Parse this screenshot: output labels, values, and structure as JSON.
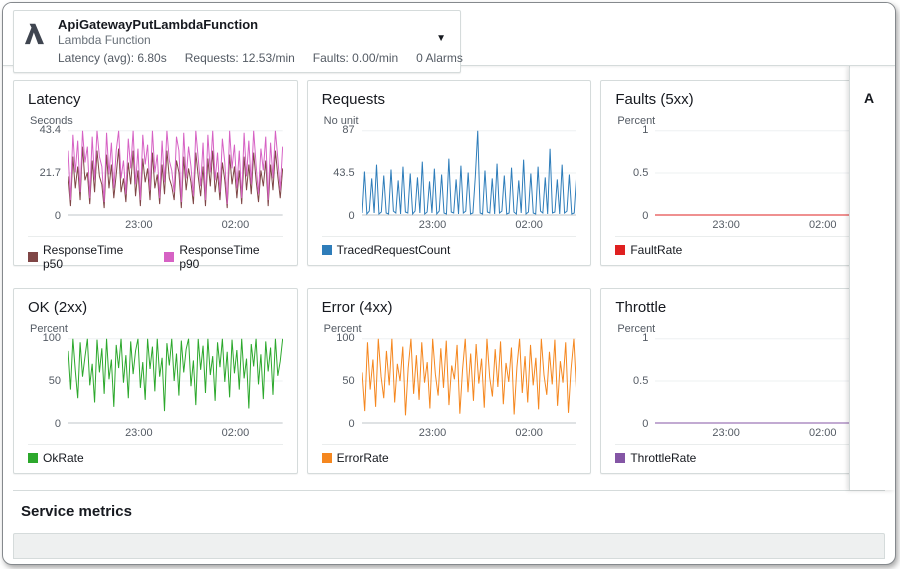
{
  "header": {
    "title": "ApiGatewayPutLambdaFunction",
    "subtitle": "Lambda Function",
    "stats": [
      "Latency (avg): 6.80s",
      "Requests: 12.53/min",
      "Faults: 0.00/min",
      "0 Alarms"
    ],
    "dropdown_glyph": "▼"
  },
  "side_panel": {
    "title": "A"
  },
  "footer": {
    "section_title": "Service metrics"
  },
  "chart_data": [
    {
      "type": "line",
      "title": "Latency",
      "ylabel": "Seconds",
      "ylim": [
        0,
        43.4
      ],
      "yticks": [
        {
          "v": 0,
          "label": "0"
        },
        {
          "v": 21.7,
          "label": "21.7"
        },
        {
          "v": 43.4,
          "label": "43.4"
        }
      ],
      "xticks": [
        "23:00",
        "02:00"
      ],
      "xtick_pos": [
        0.33,
        0.78
      ],
      "grid": true,
      "legend_position": "bottom",
      "series": [
        {
          "name": "ResponseTime p50",
          "color": "#7f4646",
          "values": [
            20,
            5,
            30,
            14,
            25,
            8,
            35,
            18,
            22,
            6,
            28,
            12,
            33,
            20,
            16,
            4,
            31,
            14,
            26,
            9,
            21,
            34,
            12,
            19,
            7,
            27,
            16,
            33,
            10,
            23,
            5,
            29,
            17,
            24,
            8,
            32,
            14,
            21,
            6,
            26,
            11,
            33,
            19,
            15,
            8,
            28,
            22,
            4,
            30,
            13,
            24,
            17,
            6,
            32,
            20,
            10,
            25,
            5,
            29,
            15,
            33,
            12,
            22,
            8,
            27,
            18,
            4,
            31,
            16,
            25,
            9,
            23,
            6,
            30,
            13,
            26,
            11,
            32,
            18,
            7,
            23,
            15,
            28,
            5,
            26,
            13,
            33,
            20,
            9,
            24
          ]
        },
        {
          "name": "ResponseTime p90",
          "color": "#d662c4",
          "values": [
            33,
            8,
            41,
            22,
            38,
            12,
            43,
            27,
            35,
            9,
            40,
            18,
            43,
            30,
            25,
            7,
            42,
            21,
            37,
            14,
            33,
            43,
            19,
            28,
            11,
            39,
            24,
            43,
            16,
            34,
            8,
            41,
            26,
            36,
            13,
            43,
            22,
            31,
            9,
            38,
            17,
            43,
            28,
            23,
            12,
            40,
            33,
            7,
            42,
            19,
            35,
            25,
            10,
            43,
            29,
            15,
            37,
            8,
            41,
            22,
            43,
            18,
            32,
            12,
            39,
            27,
            6,
            43,
            24,
            36,
            14,
            33,
            9,
            42,
            20,
            38,
            16,
            43,
            26,
            11,
            34,
            23,
            40,
            8,
            37,
            19,
            43,
            29,
            13,
            35
          ]
        }
      ]
    },
    {
      "type": "line",
      "title": "Requests",
      "ylabel": "No unit",
      "ylim": [
        0,
        87
      ],
      "yticks": [
        {
          "v": 0,
          "label": "0"
        },
        {
          "v": 43.5,
          "label": "43.5"
        },
        {
          "v": 87,
          "label": "87"
        }
      ],
      "xticks": [
        "23:00",
        "02:00"
      ],
      "xtick_pos": [
        0.33,
        0.78
      ],
      "grid": true,
      "legend_position": "bottom",
      "series": [
        {
          "name": "TracedRequestCount",
          "color": "#2e7dba",
          "values": [
            3,
            45,
            2,
            5,
            38,
            3,
            52,
            2,
            4,
            41,
            3,
            2,
            47,
            5,
            3,
            36,
            2,
            50,
            4,
            3,
            43,
            2,
            5,
            39,
            3,
            55,
            2,
            4,
            35,
            3,
            48,
            2,
            5,
            42,
            3,
            2,
            58,
            4,
            3,
            37,
            2,
            51,
            3,
            5,
            44,
            2,
            3,
            40,
            87,
            3,
            2,
            46,
            4,
            3,
            38,
            2,
            53,
            3,
            5,
            41,
            2,
            3,
            49,
            4,
            2,
            36,
            3,
            57,
            2,
            4,
            43,
            3,
            2,
            50,
            5,
            3,
            39,
            2,
            68,
            3,
            4,
            37,
            2,
            52,
            3,
            5,
            42,
            2,
            3,
            40
          ]
        }
      ]
    },
    {
      "type": "line",
      "title": "Faults (5xx)",
      "ylabel": "Percent",
      "ylim": [
        0,
        1
      ],
      "yticks": [
        {
          "v": 0,
          "label": "0"
        },
        {
          "v": 0.5,
          "label": "0.5"
        },
        {
          "v": 1,
          "label": "1"
        }
      ],
      "xticks": [
        "23:00",
        "02:00"
      ],
      "xtick_pos": [
        0.33,
        0.78
      ],
      "grid": true,
      "legend_position": "bottom",
      "series": [
        {
          "name": "FaultRate",
          "color": "#df2020",
          "values": [
            0,
            0
          ]
        }
      ]
    },
    {
      "type": "line",
      "title": "OK (2xx)",
      "ylabel": "Percent",
      "ylim": [
        0,
        100
      ],
      "yticks": [
        {
          "v": 0,
          "label": "0"
        },
        {
          "v": 50,
          "label": "50"
        },
        {
          "v": 100,
          "label": "100"
        }
      ],
      "xticks": [
        "23:00",
        "02:00"
      ],
      "xtick_pos": [
        0.33,
        0.78
      ],
      "grid": true,
      "legend_position": "bottom",
      "series": [
        {
          "name": "OkRate",
          "color": "#2ca82c",
          "values": [
            85,
            40,
            100,
            62,
            30,
            95,
            55,
            78,
            100,
            45,
            70,
            25,
            98,
            60,
            88,
            35,
            100,
            52,
            75,
            20,
            92,
            65,
            100,
            48,
            80,
            30,
            96,
            58,
            85,
            100,
            42,
            72,
            28,
            100,
            64,
            90,
            38,
            100,
            55,
            77,
            15,
            94,
            68,
            100,
            50,
            82,
            33,
            97,
            60,
            87,
            100,
            44,
            74,
            22,
            99,
            63,
            91,
            36,
            100,
            57,
            79,
            27,
            95,
            66,
            100,
            49,
            84,
            31,
            98,
            59,
            86,
            40,
            100,
            53,
            76,
            18,
            93,
            67,
            100,
            46,
            81,
            29,
            96,
            61,
            89,
            34,
            100,
            56,
            73,
            100
          ]
        }
      ]
    },
    {
      "type": "line",
      "title": "Error (4xx)",
      "ylabel": "Percent",
      "ylim": [
        0,
        100
      ],
      "yticks": [
        {
          "v": 0,
          "label": "0"
        },
        {
          "v": 50,
          "label": "50"
        },
        {
          "v": 100,
          "label": "100"
        }
      ],
      "xticks": [
        "23:00",
        "02:00"
      ],
      "xtick_pos": [
        0.33,
        0.78
      ],
      "grid": true,
      "legend_position": "bottom",
      "series": [
        {
          "name": "ErrorRate",
          "color": "#f5871f",
          "values": [
            60,
            15,
            95,
            40,
            75,
            20,
            100,
            55,
            30,
            85,
            45,
            100,
            25,
            70,
            50,
            90,
            10,
            65,
            100,
            35,
            80,
            28,
            95,
            48,
            72,
            18,
            100,
            58,
            33,
            88,
            42,
            97,
            22,
            68,
            52,
            92,
            12,
            63,
            100,
            37,
            82,
            27,
            93,
            47,
            76,
            19,
            100,
            54,
            32,
            87,
            43,
            96,
            23,
            71,
            49,
            89,
            11,
            66,
            100,
            36,
            79,
            25,
            92,
            45,
            77,
            17,
            100,
            57,
            34,
            84,
            46,
            98,
            21,
            73,
            48,
            95,
            13,
            64,
            100,
            38
          ]
        }
      ]
    },
    {
      "type": "line",
      "title": "Throttle",
      "ylabel": "Percent",
      "ylim": [
        0,
        1
      ],
      "yticks": [
        {
          "v": 0,
          "label": "0"
        },
        {
          "v": 0.5,
          "label": "0.5"
        },
        {
          "v": 1,
          "label": "1"
        }
      ],
      "xticks": [
        "23:00",
        "02:00"
      ],
      "xtick_pos": [
        0.33,
        0.78
      ],
      "grid": true,
      "legend_position": "bottom",
      "series": [
        {
          "name": "ThrottleRate",
          "color": "#8456a5",
          "values": [
            0,
            0
          ]
        }
      ]
    }
  ]
}
